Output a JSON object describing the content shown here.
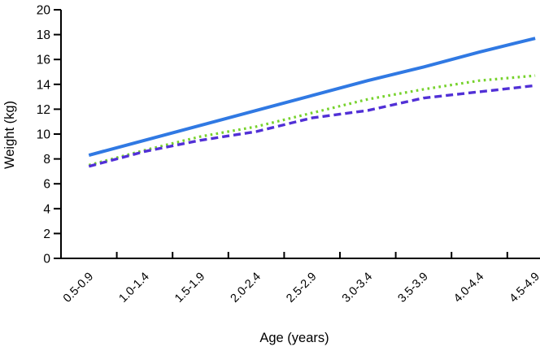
{
  "chart_data": {
    "type": "line",
    "xlabel": "Age (years)",
    "ylabel": "Weight (kg)",
    "categories": [
      "0.5-0.9",
      "1.0-1.4",
      "1.5-1.9",
      "2.0-2.4",
      "2.5-2.9",
      "3.0-3.4",
      "3.5-3.9",
      "4.0-4.4",
      "4.5-4.9"
    ],
    "yticks": [
      0,
      2,
      4,
      6,
      8,
      10,
      12,
      14,
      16,
      18,
      20
    ],
    "ylim": [
      0,
      20
    ],
    "grid": false,
    "legend": "none",
    "axis_color": "#000000",
    "series": [
      {
        "name": "green-dotted-line",
        "style": "dotted",
        "color": "#76d22c",
        "values": [
          7.5,
          8.7,
          9.8,
          10.6,
          11.7,
          12.8,
          13.6,
          14.3,
          14.7
        ]
      },
      {
        "name": "purple-dashed-line",
        "style": "dashed",
        "color": "#5130d6",
        "values": [
          7.4,
          8.6,
          9.5,
          10.2,
          11.3,
          11.9,
          12.9,
          13.4,
          13.9
        ]
      },
      {
        "name": "blue-solid-line",
        "style": "solid",
        "color": "#3079e3",
        "values": [
          8.3,
          9.5,
          10.7,
          11.9,
          13.1,
          14.3,
          15.4,
          16.6,
          17.7
        ]
      }
    ]
  }
}
